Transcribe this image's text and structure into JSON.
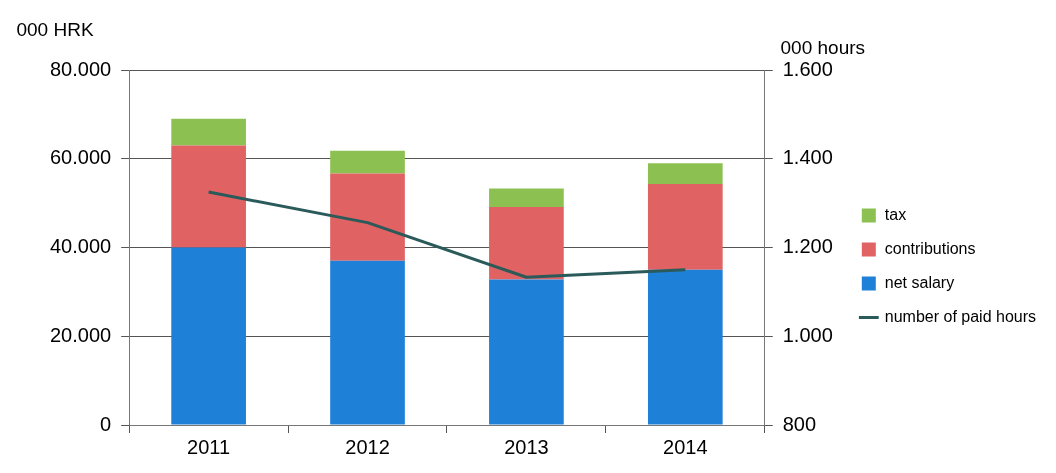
{
  "chart_data": {
    "type": "bar",
    "stacked": true,
    "ylabel": "000 HRK",
    "y2label": "000 hours",
    "categories": [
      "2011",
      "2012",
      "2013",
      "2014"
    ],
    "series": [
      {
        "name": "net salary",
        "color": "#1f80d8",
        "values": [
          40000,
          37000,
          32800,
          35000
        ]
      },
      {
        "name": "contributions",
        "color": "#e06262",
        "values": [
          23000,
          19700,
          16300,
          19300
        ]
      },
      {
        "name": "tax",
        "color": "#8cc152",
        "values": [
          6000,
          5100,
          4200,
          4700
        ]
      },
      {
        "name": "number of paid hours",
        "type": "line",
        "axis": "y2",
        "color": "#2b5a5a",
        "marker": "none",
        "values": [
          1325,
          1256,
          1133,
          1150
        ]
      }
    ],
    "ylim": [
      0,
      80000
    ],
    "yticks": [
      {
        "value": 0,
        "label": "0"
      },
      {
        "value": 20000,
        "label": "20.000"
      },
      {
        "value": 40000,
        "label": "40.000"
      },
      {
        "value": 60000,
        "label": "60.000"
      },
      {
        "value": 80000,
        "label": "80.000"
      }
    ],
    "y2lim": [
      800,
      1600
    ],
    "y2ticks": [
      {
        "value": 800,
        "label": "800"
      },
      {
        "value": 1000,
        "label": "1.000"
      },
      {
        "value": 1200,
        "label": "1.200"
      },
      {
        "value": 1400,
        "label": "1.400"
      },
      {
        "value": 1600,
        "label": "1.600"
      }
    ],
    "grid": "y",
    "legend": "right"
  }
}
